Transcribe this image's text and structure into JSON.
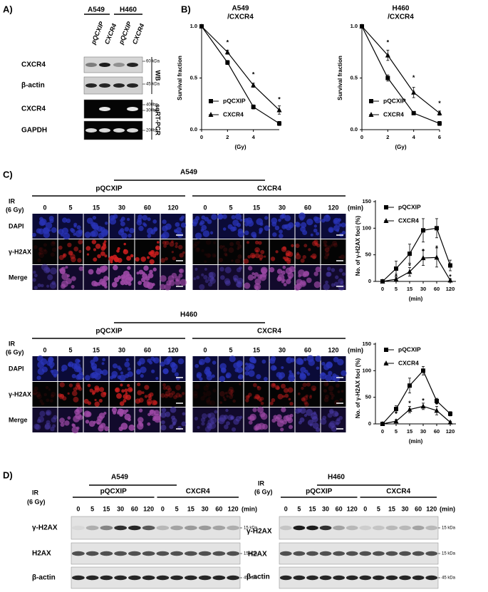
{
  "panel_labels": [
    "A)",
    "B)",
    "C)",
    "D)"
  ],
  "panel_a": {
    "cell_lines": [
      "A549",
      "H460"
    ],
    "lanes": [
      "pQCXIP",
      "CXCR4",
      "pQCXIP",
      "CXCR4"
    ],
    "rows": [
      "CXCR4",
      "β-actin",
      "CXCR4",
      "GAPDH"
    ],
    "markers": [
      "60 kDa",
      "45 kDa",
      "400bp",
      "300bp",
      "200bp"
    ],
    "methods": [
      "WB",
      "sqRT-PCR"
    ]
  },
  "chart_data": [
    {
      "type": "line",
      "title_lines": [
        "A549",
        "/CXCR4"
      ],
      "xlabel": "(Gy)",
      "ylabel": "Survival fraction",
      "x": [
        0,
        2,
        4,
        6
      ],
      "xlim": [
        0,
        6
      ],
      "xticks": [
        0,
        2,
        4
      ],
      "ylim": [
        0,
        1
      ],
      "yticks": [
        {
          "value": 0,
          "label": "0.0"
        },
        {
          "value": 0.5,
          "label": "0.5"
        },
        {
          "value": 1,
          "label": "1.0"
        }
      ],
      "legend": "lower left",
      "series": [
        {
          "name": "pQCXIP",
          "color": "#000000",
          "marker": "square",
          "values": [
            1,
            0.65,
            0.22,
            0.06
          ],
          "errors": [
            0,
            0.02,
            0.02,
            0.02
          ]
        },
        {
          "name": "CXCR4",
          "color": "#000000",
          "marker": "triangle",
          "values": [
            1,
            0.75,
            0.43,
            0.19
          ],
          "errors": [
            0,
            0.02,
            0.02,
            0.04
          ]
        }
      ],
      "annotations": [
        {
          "text": "*",
          "x": 2,
          "y": 0.84
        },
        {
          "text": "*",
          "x": 4,
          "y": 0.53
        },
        {
          "text": "*",
          "x": 6,
          "y": 0.29
        }
      ]
    },
    {
      "type": "line",
      "title_lines": [
        "H460",
        "/CXCR4"
      ],
      "xlabel": "(Gy)",
      "ylabel": "Survival fraction",
      "x": [
        0,
        2,
        4,
        6
      ],
      "xlim": [
        0,
        6
      ],
      "xticks": [
        0,
        2,
        4,
        6
      ],
      "ylim": [
        0,
        1
      ],
      "yticks": [
        {
          "value": 0,
          "label": "0.0"
        },
        {
          "value": 0.5,
          "label": "0.5"
        },
        {
          "value": 1,
          "label": "1.0"
        }
      ],
      "legend": "lower left",
      "series": [
        {
          "name": "pQCXIP",
          "color": "#000000",
          "marker": "square",
          "values": [
            1,
            0.5,
            0.16,
            0.06
          ],
          "errors": [
            0,
            0.03,
            0.01,
            0.02
          ]
        },
        {
          "name": "CXCR4",
          "color": "#000000",
          "marker": "triangle",
          "values": [
            1,
            0.72,
            0.36,
            0.16
          ],
          "errors": [
            0,
            0.05,
            0.05,
            0.02
          ]
        }
      ],
      "annotations": [
        {
          "text": "*",
          "x": 2,
          "y": 0.84
        },
        {
          "text": "*",
          "x": 4,
          "y": 0.5
        },
        {
          "text": "*",
          "x": 6,
          "y": 0.25
        }
      ]
    },
    {
      "type": "line",
      "xlabel": "(min)",
      "ylabel": "No. of γ-H2AX foci (%)",
      "categories": [
        "0",
        "5",
        "15",
        "30",
        "60",
        "120"
      ],
      "ylim": [
        0,
        150
      ],
      "yticks": [
        0,
        50,
        100,
        150
      ],
      "legend": "upper left",
      "series": [
        {
          "name": "pQCXIP",
          "color": "#000000",
          "marker": "square",
          "values": [
            0,
            24,
            52,
            96,
            100,
            30
          ],
          "errors": [
            0,
            14,
            18,
            22,
            18,
            10
          ]
        },
        {
          "name": "CXCR4",
          "color": "#000000",
          "marker": "triangle",
          "values": [
            0,
            4,
            18,
            44,
            45,
            2
          ],
          "errors": [
            0,
            4,
            8,
            14,
            18,
            3
          ]
        }
      ],
      "annotations": [
        {
          "text": "*",
          "x": "5",
          "y": 10
        },
        {
          "text": "*",
          "x": "15",
          "y": 28
        },
        {
          "text": "*",
          "x": "30",
          "y": 56
        },
        {
          "text": "*",
          "x": "60",
          "y": 62
        },
        {
          "text": "*",
          "x": "120",
          "y": 8
        }
      ]
    },
    {
      "type": "line",
      "xlabel": "(min)",
      "ylabel": "No. of γ-H2AX foci (%)",
      "categories": [
        "0",
        "5",
        "15",
        "30",
        "60",
        "120"
      ],
      "ylim": [
        0,
        150
      ],
      "yticks": [
        0,
        50,
        100,
        150
      ],
      "legend": "upper left",
      "series": [
        {
          "name": "pQCXIP",
          "color": "#000000",
          "marker": "square",
          "values": [
            0,
            28,
            72,
            100,
            43,
            19
          ],
          "errors": [
            0,
            6,
            14,
            8,
            5,
            4
          ]
        },
        {
          "name": "CXCR4",
          "color": "#000000",
          "marker": "triangle",
          "values": [
            0,
            5,
            27,
            33,
            25,
            3
          ],
          "errors": [
            0,
            3,
            6,
            6,
            8,
            2
          ]
        }
      ],
      "annotations": [
        {
          "text": "*",
          "x": "5",
          "y": 18
        },
        {
          "text": "*",
          "x": "15",
          "y": 38
        },
        {
          "text": "*",
          "x": "30",
          "y": 43
        },
        {
          "text": "*",
          "x": "60",
          "y": 35
        }
      ]
    }
  ],
  "panel_c": [
    {
      "cell_line": "A549",
      "ir": "IR",
      "dose": "(6 Gy)",
      "groups": [
        "pQCXIP",
        "CXCR4"
      ],
      "times": [
        "0",
        "5",
        "15",
        "30",
        "60",
        "120"
      ],
      "unit": "(min)",
      "rows": [
        "DAPI",
        "γ-H2AX",
        "Merge"
      ]
    },
    {
      "cell_line": "H460",
      "ir": "IR",
      "dose": "(6 Gy)",
      "groups": [
        "pQCXIP",
        "CXCR4"
      ],
      "times": [
        "0",
        "5",
        "15",
        "30",
        "60",
        "120"
      ],
      "unit": "(min)",
      "rows": [
        "DAPI",
        "γ-H2AX",
        "Merge"
      ]
    }
  ],
  "panel_d": [
    {
      "cell_line": "A549",
      "ir": "IR",
      "dose": "(6 Gy)",
      "groups": [
        "pQCXIP",
        "CXCR4"
      ],
      "times": [
        "0",
        "5",
        "15",
        "30",
        "60",
        "120"
      ],
      "unit": "(min)",
      "rows": [
        "γ-H2AX",
        "H2AX",
        "β-actin"
      ],
      "markers": [
        "15 kDa",
        "15 kDa",
        "45 kDa"
      ]
    },
    {
      "cell_line": "H460",
      "ir": "IR",
      "dose": "(6 Gy)",
      "groups": [
        "pQCXIP",
        "CXCR4"
      ],
      "times": [
        "0",
        "5",
        "15",
        "30",
        "60",
        "120"
      ],
      "unit": "(min)",
      "rows": [
        "γ-H2AX",
        "H2AX",
        "β-actin"
      ],
      "markers": [
        "15 kDa",
        "15 kDa",
        "45 kDa"
      ]
    }
  ]
}
